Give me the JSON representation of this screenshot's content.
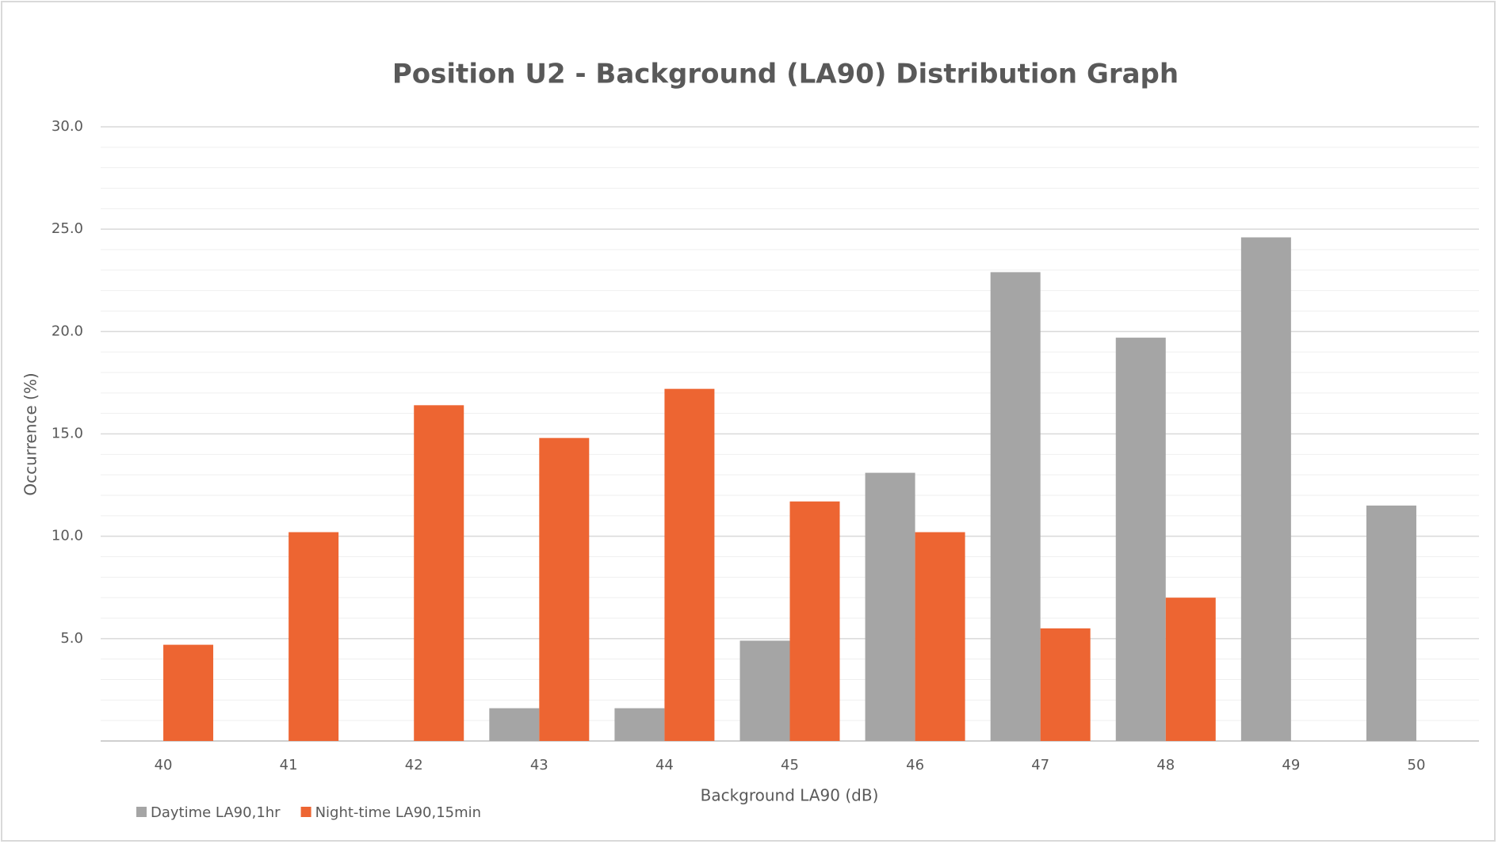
{
  "chart_data": {
    "type": "bar",
    "title": "Position U2 - Background (LA90) Distribution Graph",
    "x_label": "Background LA90 (dB)",
    "y_label": "Occurrence (%)",
    "categories": [
      "40",
      "41",
      "42",
      "43",
      "44",
      "45",
      "46",
      "47",
      "48",
      "49",
      "50"
    ],
    "series": [
      {
        "name": "Daytime LA90,1hr",
        "color": "#a5a5a5",
        "values": [
          0,
          0,
          0,
          1.6,
          1.6,
          4.9,
          13.1,
          22.9,
          19.7,
          24.6,
          11.5
        ]
      },
      {
        "name": "Night-time LA90,15min",
        "color": "#ed6532",
        "values": [
          4.7,
          10.2,
          16.4,
          14.8,
          17.2,
          11.7,
          10.2,
          5.5,
          7.0,
          0,
          0
        ]
      }
    ],
    "ylim": [
      0,
      30
    ],
    "yticks": [
      {
        "value": 5,
        "label": "5.0"
      },
      {
        "value": 10,
        "label": "10.0"
      },
      {
        "value": 15,
        "label": "15.0"
      },
      {
        "value": 20,
        "label": "20.0"
      },
      {
        "value": 25,
        "label": "25.0"
      },
      {
        "value": 30,
        "label": "30.0"
      }
    ],
    "grid": true,
    "legend": "bottom-left"
  }
}
